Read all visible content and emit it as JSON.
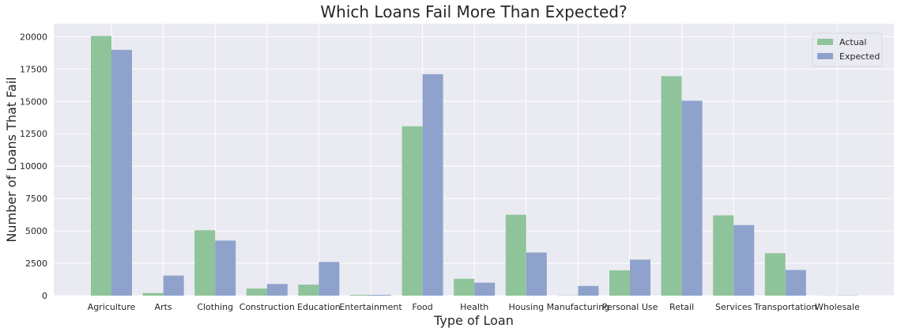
{
  "chart_data": {
    "type": "bar",
    "title": "Which Loans Fail More Than Expected?",
    "xlabel": "Type of Loan",
    "ylabel": "Number of Loans That Fail",
    "categories": [
      "Agriculture",
      "Arts",
      "Clothing",
      "Construction",
      "Education",
      "Entertainment",
      "Food",
      "Health",
      "Housing",
      "Manufacturing",
      "Personal Use",
      "Retail",
      "Services",
      "Transportation",
      "Wholesale"
    ],
    "series": [
      {
        "name": "Actual",
        "color": "#8fc49a",
        "values": [
          20050,
          200,
          5050,
          550,
          850,
          60,
          13080,
          1300,
          6250,
          20,
          1950,
          16950,
          6200,
          3280,
          10
        ]
      },
      {
        "name": "Expected",
        "color": "#8ea2cc",
        "values": [
          18980,
          1550,
          4250,
          900,
          2600,
          60,
          17100,
          1000,
          3330,
          750,
          2780,
          15050,
          5450,
          1980,
          20
        ]
      }
    ],
    "yticks": [
      0,
      2500,
      5000,
      7500,
      10000,
      12500,
      15000,
      17500,
      20000
    ],
    "ylim": [
      0,
      21000
    ],
    "grid": true,
    "legend_position": "top-right",
    "background": "#eaeaf2",
    "grid_color": "#ffffff"
  }
}
